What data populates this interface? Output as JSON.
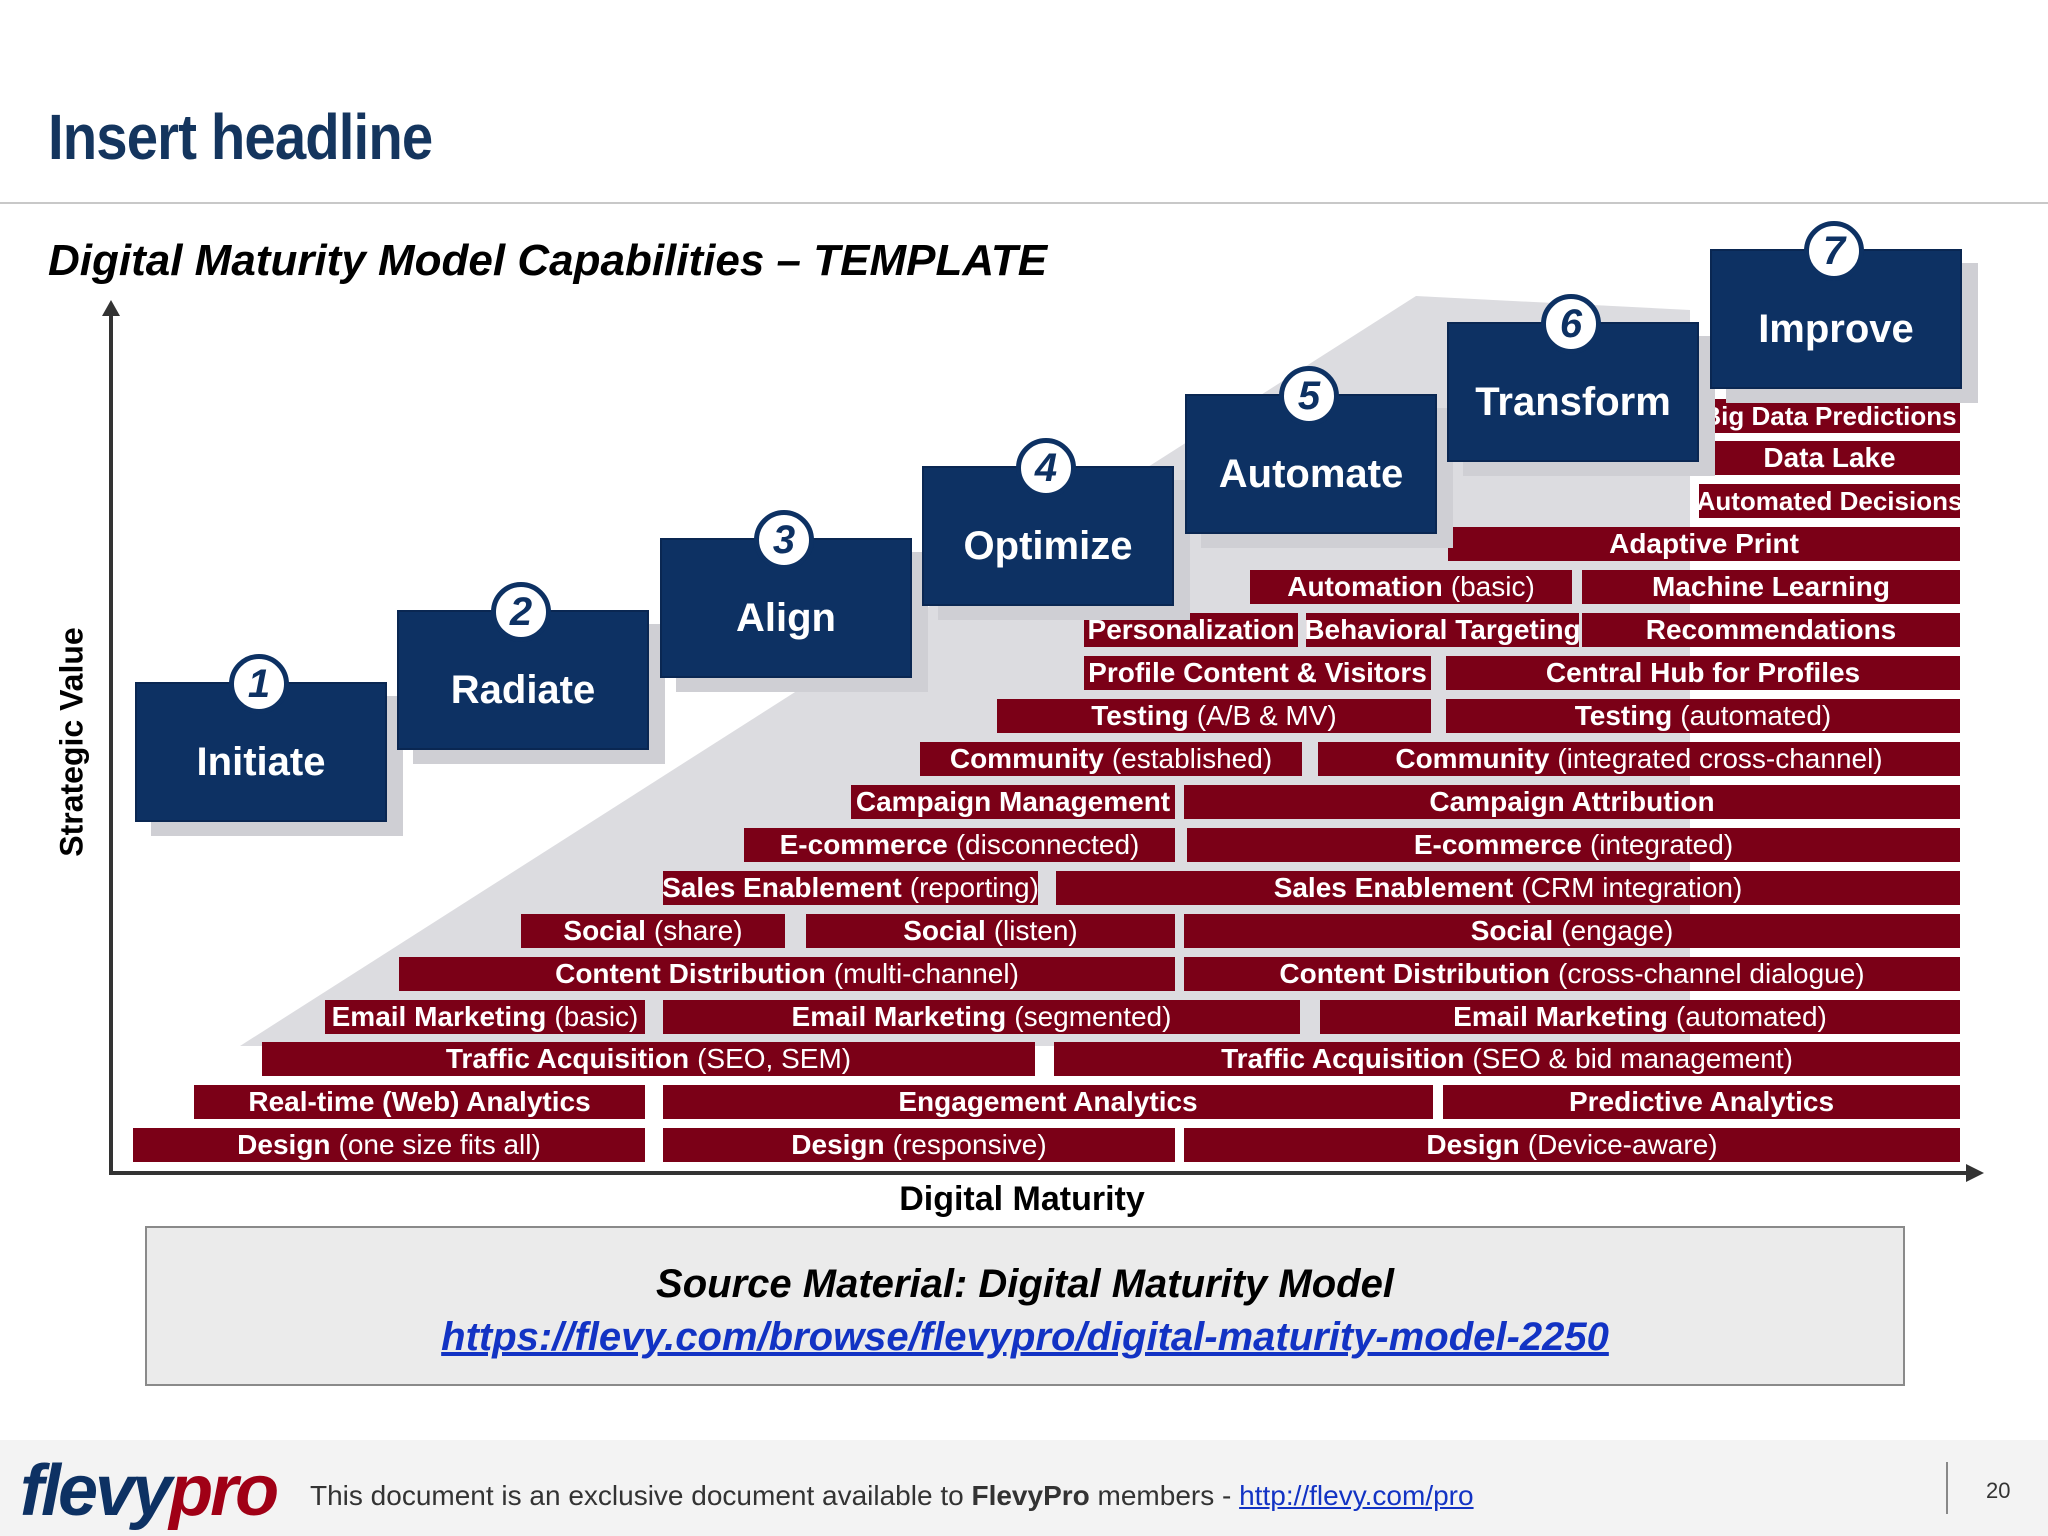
{
  "headline": "Insert headline",
  "subtitle": "Digital Maturity Model Capabilities – TEMPLATE",
  "axes": {
    "y_label": "Strategic Value",
    "x_label": "Digital Maturity"
  },
  "stages": [
    {
      "num": "1",
      "label": "Initiate"
    },
    {
      "num": "2",
      "label": "Radiate"
    },
    {
      "num": "3",
      "label": "Align"
    },
    {
      "num": "4",
      "label": "Optimize"
    },
    {
      "num": "5",
      "label": "Automate"
    },
    {
      "num": "6",
      "label": "Transform"
    },
    {
      "num": "7",
      "label": "Improve"
    }
  ],
  "capabilities": [
    {
      "bold": "Design",
      "normal": "(one size fits all)"
    },
    {
      "bold": "Design",
      "normal": "(responsive)"
    },
    {
      "bold": "Design",
      "normal": "(Device-aware)"
    },
    {
      "bold": "Real-time (Web) Analytics",
      "normal": ""
    },
    {
      "bold": "Engagement Analytics",
      "normal": ""
    },
    {
      "bold": "Predictive Analytics",
      "normal": ""
    },
    {
      "bold": "Traffic Acquisition",
      "normal": "(SEO, SEM)"
    },
    {
      "bold": "Traffic Acquisition",
      "normal": "(SEO & bid management)"
    },
    {
      "bold": "Email Marketing",
      "normal": "(basic)"
    },
    {
      "bold": "Email Marketing",
      "normal": "(segmented)"
    },
    {
      "bold": "Email Marketing",
      "normal": "(automated)"
    },
    {
      "bold": "Content Distribution",
      "normal": "(multi-channel)"
    },
    {
      "bold": "Content Distribution",
      "normal": "(cross-channel dialogue)"
    },
    {
      "bold": "Social",
      "normal": "(share)"
    },
    {
      "bold": "Social",
      "normal": "(listen)"
    },
    {
      "bold": "Social",
      "normal": "(engage)"
    },
    {
      "bold": "Sales Enablement",
      "normal": "(reporting)"
    },
    {
      "bold": "Sales Enablement",
      "normal": "(CRM integration)"
    },
    {
      "bold": "E-commerce",
      "normal": "(disconnected)"
    },
    {
      "bold": "E-commerce",
      "normal": "(integrated)"
    },
    {
      "bold": "Campaign Management",
      "normal": ""
    },
    {
      "bold": "Campaign Attribution",
      "normal": ""
    },
    {
      "bold": "Community",
      "normal": "(established)"
    },
    {
      "bold": "Community",
      "normal": "(integrated cross-channel)"
    },
    {
      "bold": "Testing",
      "normal": "(A/B & MV)"
    },
    {
      "bold": "Testing",
      "normal": "(automated)"
    },
    {
      "bold": "Profile Content & Visitors",
      "normal": ""
    },
    {
      "bold": "Central Hub for Profiles",
      "normal": ""
    },
    {
      "bold": "Personalization",
      "normal": ""
    },
    {
      "bold": "Behavioral Targeting",
      "normal": ""
    },
    {
      "bold": "Recommendations",
      "normal": ""
    },
    {
      "bold": "Automation",
      "normal": "(basic)"
    },
    {
      "bold": "Machine Learning",
      "normal": ""
    },
    {
      "bold": "Adaptive Print",
      "normal": ""
    },
    {
      "bold": "Automated Decisions",
      "normal": ""
    },
    {
      "bold": "Data Lake",
      "normal": ""
    },
    {
      "bold": "Big Data Predictions",
      "normal": ""
    }
  ],
  "source": {
    "title": "Source Material: Digital Maturity Model",
    "link": "https://flevy.com/browse/flevypro/digital-maturity-model-2250"
  },
  "footer": {
    "logo_main": "flevy",
    "logo_accent": "pro",
    "text_before": "This document is an exclusive document available to",
    "brand": "FlevyPro",
    "text_after": "members -",
    "link": "http://flevy.com/pro",
    "page_number": "20"
  },
  "colors": {
    "navy": "#0d3163",
    "crimson": "#7b0017",
    "link": "#1233c4"
  }
}
